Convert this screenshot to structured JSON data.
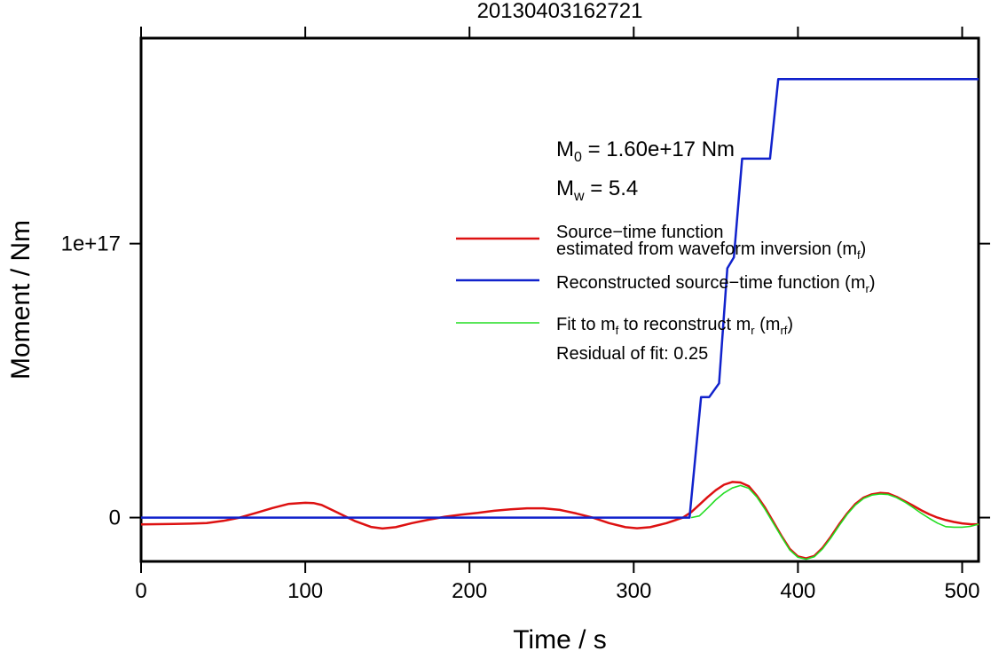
{
  "chart_data": {
    "type": "line",
    "title": "20130403162721",
    "xlabel": "Time / s",
    "ylabel": "Moment / Nm",
    "xlim": [
      0,
      510
    ],
    "ylim": [
      -1.6e+16,
      1.75e+17
    ],
    "x_ticks": [
      {
        "value": 0,
        "label": "0"
      },
      {
        "value": 100,
        "label": "100"
      },
      {
        "value": 200,
        "label": "200"
      },
      {
        "value": 300,
        "label": "300"
      },
      {
        "value": 400,
        "label": "400"
      },
      {
        "value": 500,
        "label": "500"
      }
    ],
    "y_ticks": [
      {
        "value": 0,
        "label": "0"
      },
      {
        "value": 1e+17,
        "label": "1e+17"
      }
    ],
    "grid": false,
    "legend_position": "right",
    "annotations": {
      "m0": {
        "sym": "M",
        "sub": "0",
        "rest": " = 1.60e+17 Nm"
      },
      "mw": {
        "sym": "M",
        "sub": "w",
        "rest": " = 5.4"
      },
      "residual": "Residual of fit: 0.25"
    },
    "legend": [
      {
        "key": "mf",
        "color": "#dd1111",
        "line1": "Source−time function",
        "line2_pre": "estimated from waveform inversion (m",
        "line2_sub": "f",
        "line2_post": ")"
      },
      {
        "key": "mr",
        "color": "#1122cc",
        "line1_pre": "Reconstructed source−time function (m",
        "line1_sub": "r",
        "line1_post": ")"
      },
      {
        "key": "mrf",
        "color": "#22dd22",
        "parts": [
          {
            "t": "Fit to m"
          },
          {
            "s": "f"
          },
          {
            "t": " to reconstruct m"
          },
          {
            "s": "r"
          },
          {
            "t": " (m"
          },
          {
            "s": "rf"
          },
          {
            "t": ")"
          }
        ]
      }
    ],
    "series": [
      {
        "key": "mf",
        "color": "#dd1111",
        "width": 2.5,
        "x": [
          0,
          10,
          20,
          30,
          40,
          50,
          60,
          70,
          80,
          90,
          100,
          105,
          110,
          120,
          130,
          140,
          147,
          155,
          165,
          175,
          185,
          195,
          205,
          215,
          225,
          235,
          245,
          255,
          265,
          275,
          285,
          295,
          302,
          310,
          320,
          330,
          335,
          340,
          345,
          350,
          355,
          360,
          365,
          370,
          375,
          380,
          385,
          390,
          395,
          400,
          405,
          410,
          415,
          420,
          425,
          430,
          435,
          440,
          445,
          450,
          455,
          460,
          465,
          470,
          475,
          480,
          485,
          490,
          495,
          500,
          505,
          510
        ],
        "y": [
          -2500000000000000.0,
          -2400000000000000.0,
          -2300000000000000.0,
          -2200000000000000.0,
          -2000000000000000.0,
          -1200000000000000.0,
          0,
          1700000000000000.0,
          3500000000000000.0,
          5000000000000000.0,
          5400000000000000.0,
          5300000000000000.0,
          4600000000000000.0,
          1700000000000000.0,
          -1200000000000000.0,
          -3400000000000000.0,
          -4000000000000000.0,
          -3500000000000000.0,
          -2000000000000000.0,
          -800000000000000.0,
          300000000000000.0,
          1100000000000000.0,
          1700000000000000.0,
          2500000000000000.0,
          3000000000000000.0,
          3400000000000000.0,
          3400000000000000.0,
          2800000000000000.0,
          1500000000000000.0,
          0,
          -2000000000000000.0,
          -3500000000000000.0,
          -3900000000000000.0,
          -3500000000000000.0,
          -2000000000000000.0,
          0,
          2000000000000000.0,
          4700000000000000.0,
          7500000000000000.0,
          1e+16,
          1.2e+16,
          1.3e+16,
          1.28e+16,
          1.15e+16,
          8000000000000000.0,
          3600000000000000.0,
          -1500000000000000.0,
          -6700000000000000.0,
          -1.14e+16,
          -1.42e+16,
          -1.49e+16,
          -1.4e+16,
          -1.1e+16,
          -7000000000000000.0,
          -2500000000000000.0,
          1500000000000000.0,
          5000000000000000.0,
          7300000000000000.0,
          8500000000000000.0,
          9000000000000000.0,
          8800000000000000.0,
          7600000000000000.0,
          6000000000000000.0,
          4400000000000000.0,
          2700000000000000.0,
          1200000000000000.0,
          0,
          -900000000000000.0,
          -1600000000000000.0,
          -2100000000000000.0,
          -2400000000000000.0,
          -2500000000000000.0
        ]
      },
      {
        "key": "mrf",
        "color": "#22dd22",
        "width": 1.6,
        "x": [
          335,
          340,
          345,
          350,
          355,
          360,
          365,
          370,
          375,
          380,
          385,
          390,
          395,
          400,
          405,
          410,
          415,
          420,
          425,
          430,
          435,
          440,
          445,
          450,
          455,
          460,
          465,
          470,
          475,
          480,
          485,
          490,
          495,
          500,
          505,
          510
        ],
        "y": [
          0,
          600000000000000.0,
          3500000000000000.0,
          6500000000000000.0,
          9000000000000000.0,
          1.08e+16,
          1.17e+16,
          1.07e+16,
          7500000000000000.0,
          3000000000000000.0,
          -2000000000000000.0,
          -7000000000000000.0,
          -1.18e+16,
          -1.45e+16,
          -1.52e+16,
          -1.43e+16,
          -1.14e+16,
          -7500000000000000.0,
          -3000000000000000.0,
          1200000000000000.0,
          4600000000000000.0,
          7000000000000000.0,
          8200000000000000.0,
          8600000000000000.0,
          8400000000000000.0,
          7300000000000000.0,
          5700000000000000.0,
          3700000000000000.0,
          1600000000000000.0,
          -300000000000000.0,
          -2000000000000000.0,
          -3300000000000000.0,
          -3500000000000000.0,
          -3500000000000000.0,
          -3200000000000000.0,
          -2400000000000000.0
        ]
      },
      {
        "key": "mr",
        "color": "#1122cc",
        "width": 2.5,
        "x": [
          0,
          334,
          341,
          346,
          352,
          357,
          361,
          366,
          370,
          378,
          383,
          388,
          510
        ],
        "y": [
          0,
          0,
          4.4e+16,
          4.4e+16,
          4.9e+16,
          9.1e+16,
          9.5e+16,
          1.31e+17,
          1.31e+17,
          1.31e+17,
          1.31e+17,
          1.6e+17,
          1.6e+17
        ]
      }
    ]
  }
}
